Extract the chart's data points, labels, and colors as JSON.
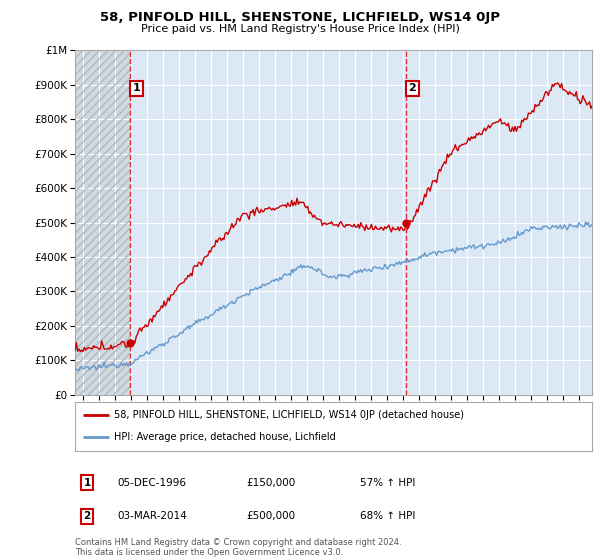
{
  "title": "58, PINFOLD HILL, SHENSTONE, LICHFIELD, WS14 0JP",
  "subtitle": "Price paid vs. HM Land Registry's House Price Index (HPI)",
  "ylim": [
    0,
    1000000
  ],
  "yticks": [
    0,
    100000,
    200000,
    300000,
    400000,
    500000,
    600000,
    700000,
    800000,
    900000,
    1000000
  ],
  "ytick_labels": [
    "£0",
    "£100K",
    "£200K",
    "£300K",
    "£400K",
    "£500K",
    "£600K",
    "£700K",
    "£800K",
    "£900K",
    "£1M"
  ],
  "sale1_date": 1996.92,
  "sale1_price": 150000,
  "sale1_label": "1",
  "sale2_date": 2014.17,
  "sale2_price": 500000,
  "sale2_label": "2",
  "vline_color": "#dd0000",
  "property_line_color": "#cc0000",
  "hpi_line_color": "#6699cc",
  "legend_property": "58, PINFOLD HILL, SHENSTONE, LICHFIELD, WS14 0JP (detached house)",
  "legend_hpi": "HPI: Average price, detached house, Lichfield",
  "footnote": "Contains HM Land Registry data © Crown copyright and database right 2024.\nThis data is licensed under the Open Government Licence v3.0.",
  "background_color": "#ffffff",
  "plot_bg_color": "#dce9f5",
  "hatch_bg_color": "#d0d8e0",
  "hatch_color": "#b0b8c0",
  "grid_color": "#ffffff",
  "label_box_color": "#cc0000",
  "xlim_start": 1993.5,
  "xlim_end": 2025.8,
  "xticks": [
    1994,
    1995,
    1996,
    1997,
    1998,
    1999,
    2000,
    2001,
    2002,
    2003,
    2004,
    2005,
    2006,
    2007,
    2008,
    2009,
    2010,
    2011,
    2012,
    2013,
    2014,
    2015,
    2016,
    2017,
    2018,
    2019,
    2020,
    2021,
    2022,
    2023,
    2024,
    2025
  ],
  "sale1_ann_date": "05-DEC-1996",
  "sale1_ann_price": "£150,000",
  "sale1_ann_hpi": "57% ↑ HPI",
  "sale2_ann_date": "03-MAR-2014",
  "sale2_ann_price": "£500,000",
  "sale2_ann_hpi": "68% ↑ HPI"
}
